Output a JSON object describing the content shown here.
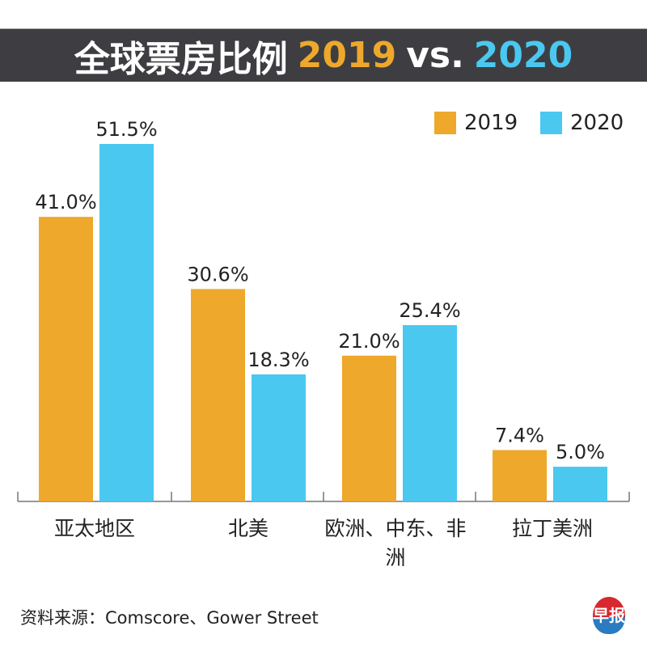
{
  "title": {
    "prefix": "全球票房比例",
    "year1": "2019",
    "vs": "vs.",
    "year2": "2020"
  },
  "colors": {
    "2019": "#eea82b",
    "2020": "#4ac8f0",
    "banner": "#3e3e42"
  },
  "chart_data": {
    "type": "bar",
    "categories": [
      "亚太地区",
      "北美",
      "欧洲、中东、非洲",
      "拉丁美洲"
    ],
    "series": [
      {
        "name": "2019",
        "values": [
          41.0,
          30.6,
          21.0,
          7.4
        ],
        "labels": [
          "41.0%",
          "30.6%",
          "21.0%",
          "7.4%"
        ]
      },
      {
        "name": "2020",
        "values": [
          51.5,
          18.3,
          25.4,
          5.0
        ],
        "labels": [
          "51.5%",
          "18.3%",
          "25.4%",
          "5.0%"
        ]
      }
    ],
    "ylim": [
      0,
      60
    ],
    "legend": "top-right",
    "grid": false
  },
  "source": "资料来源：Comscore、Gower Street",
  "logo_text": "早报"
}
